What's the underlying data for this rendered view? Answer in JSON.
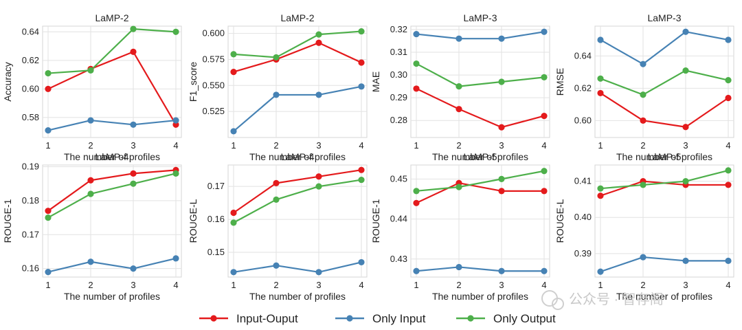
{
  "legend": [
    {
      "label": "Input-Ouput",
      "color": "#e41a1c"
    },
    {
      "label": "Only Input",
      "color": "#4682b4"
    },
    {
      "label": "Only Output",
      "color": "#4daf4a"
    }
  ],
  "watermark": "公众号 · 智存阁",
  "chart_data": [
    {
      "type": "line",
      "title": "LaMP-2",
      "xlabel": "The number of profiles",
      "ylabel": "Accuracy",
      "x": [
        1,
        2,
        3,
        4
      ],
      "ylim": [
        0.566,
        0.644
      ],
      "yticks": [
        "0.58",
        "0.60",
        "0.62",
        "0.64"
      ],
      "series": [
        {
          "name": "Input-Ouput",
          "values": [
            0.6,
            0.614,
            0.626,
            0.575
          ]
        },
        {
          "name": "Only Input",
          "values": [
            0.571,
            0.578,
            0.575,
            0.578
          ]
        },
        {
          "name": "Only Output",
          "values": [
            0.611,
            0.613,
            0.642,
            0.64
          ]
        }
      ]
    },
    {
      "type": "line",
      "title": "LaMP-2",
      "xlabel": "The number of profiles",
      "ylabel": "F1_score",
      "x": [
        1,
        2,
        3,
        4
      ],
      "ylim": [
        0.5,
        0.607
      ],
      "yticks": [
        "0.525",
        "0.550",
        "0.575",
        "0.600"
      ],
      "series": [
        {
          "name": "Input-Ouput",
          "values": [
            0.563,
            0.575,
            0.591,
            0.572
          ]
        },
        {
          "name": "Only Input",
          "values": [
            0.506,
            0.541,
            0.541,
            0.549
          ]
        },
        {
          "name": "Only Output",
          "values": [
            0.58,
            0.577,
            0.599,
            0.602
          ]
        }
      ]
    },
    {
      "type": "line",
      "title": "LaMP-3",
      "xlabel": "The number of profiles",
      "ylabel": "MAE",
      "x": [
        1,
        2,
        3,
        4
      ],
      "ylim": [
        0.2725,
        0.3215
      ],
      "yticks": [
        "0.28",
        "0.29",
        "0.30",
        "0.31",
        "0.32"
      ],
      "series": [
        {
          "name": "Input-Ouput",
          "values": [
            0.294,
            0.285,
            0.277,
            0.282
          ]
        },
        {
          "name": "Only Input",
          "values": [
            0.318,
            0.316,
            0.316,
            0.319
          ]
        },
        {
          "name": "Only Output",
          "values": [
            0.305,
            0.295,
            0.297,
            0.299
          ]
        }
      ]
    },
    {
      "type": "line",
      "title": "LaMP-3",
      "xlabel": "The number of profiles",
      "ylabel": "RMSE",
      "x": [
        1,
        2,
        3,
        4
      ],
      "ylim": [
        0.5895,
        0.6585
      ],
      "yticks": [
        "0.60",
        "0.62",
        "0.64"
      ],
      "series": [
        {
          "name": "Input-Ouput",
          "values": [
            0.617,
            0.6,
            0.596,
            0.614
          ]
        },
        {
          "name": "Only Input",
          "values": [
            0.65,
            0.635,
            0.655,
            0.65
          ]
        },
        {
          "name": "Only Output",
          "values": [
            0.626,
            0.616,
            0.631,
            0.625
          ]
        }
      ]
    },
    {
      "type": "line",
      "title": "LaMP-4",
      "xlabel": "The number of profiles",
      "ylabel": "ROUGE-1",
      "x": [
        1,
        2,
        3,
        4
      ],
      "ylim": [
        0.1575,
        0.1905
      ],
      "yticks": [
        "0.16",
        "0.17",
        "0.18",
        "0.19"
      ],
      "series": [
        {
          "name": "Input-Ouput",
          "values": [
            0.177,
            0.186,
            0.188,
            0.189
          ]
        },
        {
          "name": "Only Input",
          "values": [
            0.159,
            0.162,
            0.16,
            0.163
          ]
        },
        {
          "name": "Only Output",
          "values": [
            0.175,
            0.182,
            0.185,
            0.188
          ]
        }
      ]
    },
    {
      "type": "line",
      "title": "LaMP-4",
      "xlabel": "The number of profiles",
      "ylabel": "ROUGE-L",
      "x": [
        1,
        2,
        3,
        4
      ],
      "ylim": [
        0.1425,
        0.1765
      ],
      "yticks": [
        "0.15",
        "0.16",
        "0.17"
      ],
      "series": [
        {
          "name": "Input-Ouput",
          "values": [
            0.162,
            0.171,
            0.173,
            0.175
          ]
        },
        {
          "name": "Only Input",
          "values": [
            0.144,
            0.146,
            0.144,
            0.147
          ]
        },
        {
          "name": "Only Output",
          "values": [
            0.159,
            0.166,
            0.17,
            0.172
          ]
        }
      ]
    },
    {
      "type": "line",
      "title": "LaMP-5",
      "xlabel": "The number of profiles",
      "ylabel": "ROUGE-1",
      "x": [
        1,
        2,
        3,
        4
      ],
      "ylim": [
        0.4255,
        0.4535
      ],
      "yticks": [
        "0.43",
        "0.44",
        "0.45"
      ],
      "series": [
        {
          "name": "Input-Ouput",
          "values": [
            0.444,
            0.449,
            0.447,
            0.447
          ]
        },
        {
          "name": "Only Input",
          "values": [
            0.427,
            0.428,
            0.427,
            0.427
          ]
        },
        {
          "name": "Only Output",
          "values": [
            0.447,
            0.448,
            0.45,
            0.452
          ]
        }
      ]
    },
    {
      "type": "line",
      "title": "LaMP-5",
      "xlabel": "The number of profiles",
      "ylabel": "ROUGE-L",
      "x": [
        1,
        2,
        3,
        4
      ],
      "ylim": [
        0.3835,
        0.4145
      ],
      "yticks": [
        "0.39",
        "0.40",
        "0.41"
      ],
      "series": [
        {
          "name": "Input-Ouput",
          "values": [
            0.406,
            0.41,
            0.409,
            0.409
          ]
        },
        {
          "name": "Only Input",
          "values": [
            0.385,
            0.389,
            0.388,
            0.388
          ]
        },
        {
          "name": "Only Output",
          "values": [
            0.408,
            0.409,
            0.41,
            0.413
          ]
        }
      ]
    }
  ]
}
